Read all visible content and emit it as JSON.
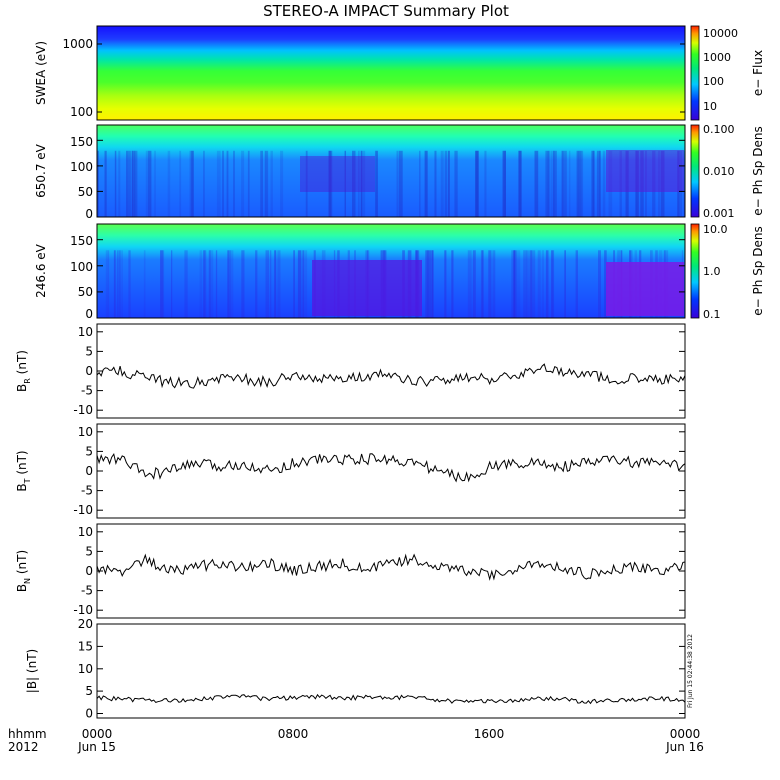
{
  "title": "STEREO-A IMPACT Summary Plot",
  "footer": {
    "row1_label": "hhmm",
    "row2_label": "2012",
    "x_ticks": [
      "0000",
      "0800",
      "1600",
      "0000"
    ],
    "date_labels": [
      "Jun 15",
      "Jun 16"
    ]
  },
  "stamp": "Fri Jun 15 02:44:38 2012",
  "colors": {
    "line": "#000000",
    "frame": "#000000",
    "background": "#ffffff"
  },
  "chart_data": [
    {
      "type": "heatmap",
      "panel": "swea",
      "ylabel": "SWEA (eV)",
      "yscale": "log",
      "ylim": [
        100,
        2000
      ],
      "yticks": [
        "1000",
        "100"
      ],
      "colorbar": {
        "label": "e− Flux",
        "scale": "log",
        "ticks": [
          "10000",
          "1000",
          "100",
          "10"
        ],
        "range": [
          5,
          20000
        ]
      },
      "xlim": [
        "0000",
        "0000"
      ],
      "description_bands": [
        {
          "energy_range": [
            1300,
            2000
          ],
          "color": "#1a1aff"
        },
        {
          "energy_range": [
            700,
            1300
          ],
          "color": "#00c8ff"
        },
        {
          "energy_range": [
            350,
            700
          ],
          "color": "#2cff2c"
        },
        {
          "energy_range": [
            150,
            350
          ],
          "color": "#b8ff00"
        },
        {
          "energy_range": [
            100,
            150
          ],
          "color": "#ffee00"
        }
      ]
    },
    {
      "type": "heatmap",
      "panel": "pad650",
      "ylabel": "650.7 eV",
      "ylim": [
        0,
        180
      ],
      "yticks": [
        "150",
        "100",
        "50",
        "0"
      ],
      "colorbar": {
        "label": "e− Ph Sp Dens",
        "scale": "log",
        "ticks": [
          "0.100",
          "0.010",
          "0.001"
        ],
        "range": [
          0.001,
          0.1
        ]
      },
      "xlim": [
        "0000",
        "0000"
      ]
    },
    {
      "type": "heatmap",
      "panel": "pad246",
      "ylabel": "246.6 eV",
      "ylim": [
        0,
        180
      ],
      "yticks": [
        "150",
        "100",
        "50",
        "0"
      ],
      "colorbar": {
        "label": "e− Ph Sp Dens",
        "scale": "log",
        "ticks": [
          "10.0",
          "1.0",
          "0.1"
        ],
        "range": [
          0.1,
          10
        ]
      },
      "xlim": [
        "0000",
        "0000"
      ]
    },
    {
      "type": "line",
      "panel": "br",
      "ylabel_main": "B",
      "ylabel_sub": "R",
      "ylabel_unit": " (nT)",
      "ylim": [
        -12,
        12
      ],
      "yticks": [
        10,
        5,
        0,
        -5,
        -10
      ],
      "x_hours": [
        0,
        1,
        2,
        3,
        4,
        5,
        6,
        7,
        8,
        9,
        10,
        11,
        12,
        13,
        14,
        15,
        16,
        17,
        18,
        19,
        20,
        21,
        22,
        23,
        24
      ],
      "values": [
        0,
        0,
        -2,
        -3,
        -3,
        -2,
        -2,
        -3,
        -1,
        -2,
        -2,
        -1,
        -1,
        -3,
        -2,
        -2,
        -2,
        -1,
        1,
        0,
        -1,
        -2,
        -2,
        -2,
        -2
      ]
    },
    {
      "type": "line",
      "panel": "bt",
      "ylabel_main": "B",
      "ylabel_sub": "T",
      "ylabel_unit": " (nT)",
      "ylim": [
        -12,
        12
      ],
      "yticks": [
        10,
        5,
        0,
        -5,
        -10
      ],
      "x_hours": [
        0,
        1,
        2,
        3,
        4,
        5,
        6,
        7,
        8,
        9,
        10,
        11,
        12,
        13,
        14,
        15,
        16,
        17,
        18,
        19,
        20,
        21,
        22,
        23,
        24
      ],
      "values": [
        3,
        3,
        -1,
        0,
        2,
        1,
        2,
        0,
        2,
        3,
        3,
        3,
        3,
        2,
        0,
        -2,
        1,
        2,
        2,
        1,
        2,
        3,
        2,
        2,
        1
      ]
    },
    {
      "type": "line",
      "panel": "bn",
      "ylabel_main": "B",
      "ylabel_sub": "N",
      "ylabel_unit": " (nT)",
      "ylim": [
        -12,
        12
      ],
      "yticks": [
        10,
        5,
        0,
        -5,
        -10
      ],
      "x_hours": [
        0,
        1,
        2,
        3,
        4,
        5,
        6,
        7,
        8,
        9,
        10,
        11,
        12,
        13,
        14,
        15,
        16,
        17,
        18,
        19,
        20,
        21,
        22,
        23,
        24
      ],
      "values": [
        1,
        0,
        3,
        0,
        1,
        2,
        1,
        2,
        0,
        1,
        2,
        0,
        2,
        3,
        1,
        0,
        -1,
        0,
        2,
        1,
        -1,
        0,
        1,
        0,
        1
      ]
    },
    {
      "type": "line",
      "panel": "bmag",
      "ylabel_main": "|B| (nT)",
      "ylim": [
        -1,
        20
      ],
      "yticks": [
        20,
        15,
        10,
        5,
        0
      ],
      "x_hours": [
        0,
        1,
        2,
        3,
        4,
        5,
        6,
        7,
        8,
        9,
        10,
        11,
        12,
        13,
        14,
        15,
        16,
        17,
        18,
        19,
        20,
        21,
        22,
        23,
        24
      ],
      "values": [
        3.5,
        3.2,
        3.0,
        2.8,
        3.2,
        3.6,
        3.8,
        3.2,
        3.5,
        3.8,
        3.5,
        3.6,
        3.7,
        3.5,
        3.0,
        2.6,
        2.8,
        3.0,
        3.4,
        3.2,
        2.6,
        2.8,
        3.0,
        3.4,
        2.7
      ]
    }
  ]
}
